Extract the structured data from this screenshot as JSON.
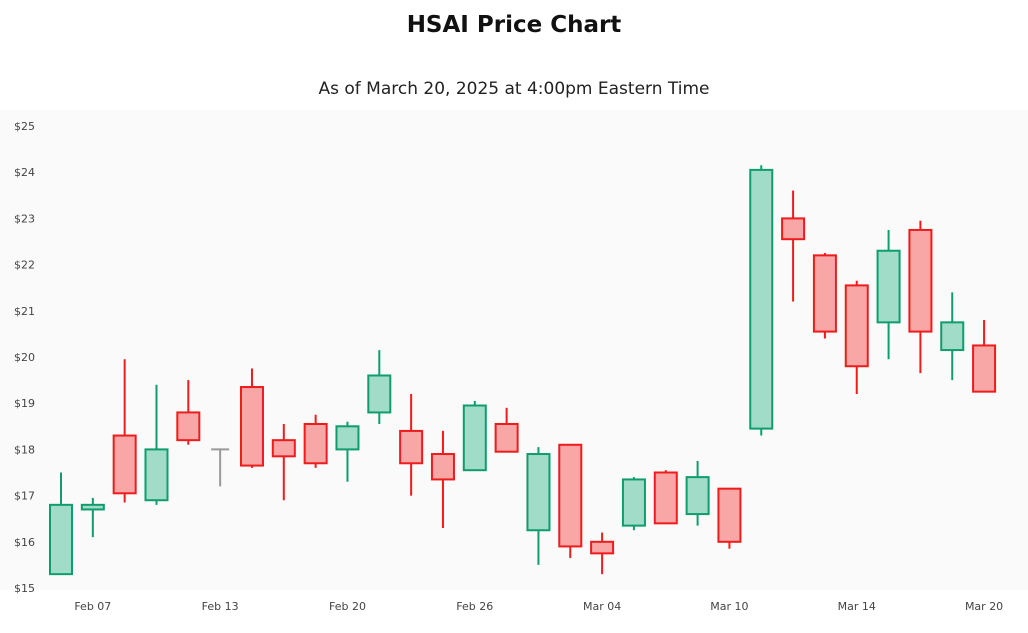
{
  "chart_data": {
    "type": "candlestick",
    "title": "HSAI Price Chart",
    "subtitle": "As of March 20, 2025 at 4:00pm Eastern Time",
    "ylim": [
      15,
      25
    ],
    "y_ticks": [
      "$15",
      "$16",
      "$17",
      "$18",
      "$19",
      "$20",
      "$21",
      "$22",
      "$23",
      "$24",
      "$25"
    ],
    "x_tick_labels": [
      {
        "label": "Feb 07",
        "index": 1
      },
      {
        "label": "Feb 13",
        "index": 5
      },
      {
        "label": "Feb 20",
        "index": 9
      },
      {
        "label": "Feb 26",
        "index": 13
      },
      {
        "label": "Mar 04",
        "index": 17
      },
      {
        "label": "Mar 10",
        "index": 21
      },
      {
        "label": "Mar 14",
        "index": 25
      },
      {
        "label": "Mar 20",
        "index": 29
      }
    ],
    "colors": {
      "up_fill": "#a0dcc8",
      "up_line": "#0f9d6e",
      "down_fill": "#f8a6a6",
      "down_line": "#ee1c1c",
      "flat_line": "#999999"
    },
    "candles": [
      {
        "open": 15.3,
        "high": 17.5,
        "low": 15.3,
        "close": 16.8
      },
      {
        "open": 16.7,
        "high": 16.95,
        "low": 16.1,
        "close": 16.8
      },
      {
        "open": 18.3,
        "high": 19.95,
        "low": 16.85,
        "close": 17.05
      },
      {
        "open": 16.9,
        "high": 19.4,
        "low": 16.8,
        "close": 18.0
      },
      {
        "open": 18.8,
        "high": 19.5,
        "low": 18.1,
        "close": 18.2
      },
      {
        "open": 18.0,
        "high": 18.0,
        "low": 17.2,
        "close": 18.0
      },
      {
        "open": 19.35,
        "high": 19.75,
        "low": 17.6,
        "close": 17.65
      },
      {
        "open": 18.2,
        "high": 18.55,
        "low": 16.9,
        "close": 17.85
      },
      {
        "open": 18.55,
        "high": 18.75,
        "low": 17.6,
        "close": 17.7
      },
      {
        "open": 18.0,
        "high": 18.6,
        "low": 17.3,
        "close": 18.5
      },
      {
        "open": 18.8,
        "high": 20.15,
        "low": 18.55,
        "close": 19.6
      },
      {
        "open": 18.4,
        "high": 19.2,
        "low": 17.0,
        "close": 17.7
      },
      {
        "open": 17.9,
        "high": 18.4,
        "low": 16.3,
        "close": 17.35
      },
      {
        "open": 17.55,
        "high": 19.05,
        "low": 17.55,
        "close": 18.95
      },
      {
        "open": 18.55,
        "high": 18.9,
        "low": 17.95,
        "close": 17.95
      },
      {
        "open": 16.25,
        "high": 18.05,
        "low": 15.5,
        "close": 17.9
      },
      {
        "open": 18.1,
        "high": 18.1,
        "low": 15.65,
        "close": 15.9
      },
      {
        "open": 16.0,
        "high": 16.2,
        "low": 15.3,
        "close": 15.75
      },
      {
        "open": 16.35,
        "high": 17.4,
        "low": 16.25,
        "close": 17.35
      },
      {
        "open": 17.5,
        "high": 17.55,
        "low": 16.4,
        "close": 16.4
      },
      {
        "open": 16.6,
        "high": 17.75,
        "low": 16.35,
        "close": 17.4
      },
      {
        "open": 17.15,
        "high": 17.15,
        "low": 15.85,
        "close": 16.0
      },
      {
        "open": 18.45,
        "high": 24.15,
        "low": 18.3,
        "close": 24.05
      },
      {
        "open": 23.0,
        "high": 23.6,
        "low": 21.2,
        "close": 22.55
      },
      {
        "open": 22.2,
        "high": 22.25,
        "low": 20.4,
        "close": 20.55
      },
      {
        "open": 21.55,
        "high": 21.65,
        "low": 19.2,
        "close": 19.8
      },
      {
        "open": 20.75,
        "high": 22.75,
        "low": 19.95,
        "close": 22.3
      },
      {
        "open": 22.75,
        "high": 22.95,
        "low": 19.65,
        "close": 20.55
      },
      {
        "open": 20.15,
        "high": 21.4,
        "low": 19.5,
        "close": 20.75
      },
      {
        "open": 20.25,
        "high": 20.8,
        "low": 19.25,
        "close": 19.25
      }
    ]
  }
}
